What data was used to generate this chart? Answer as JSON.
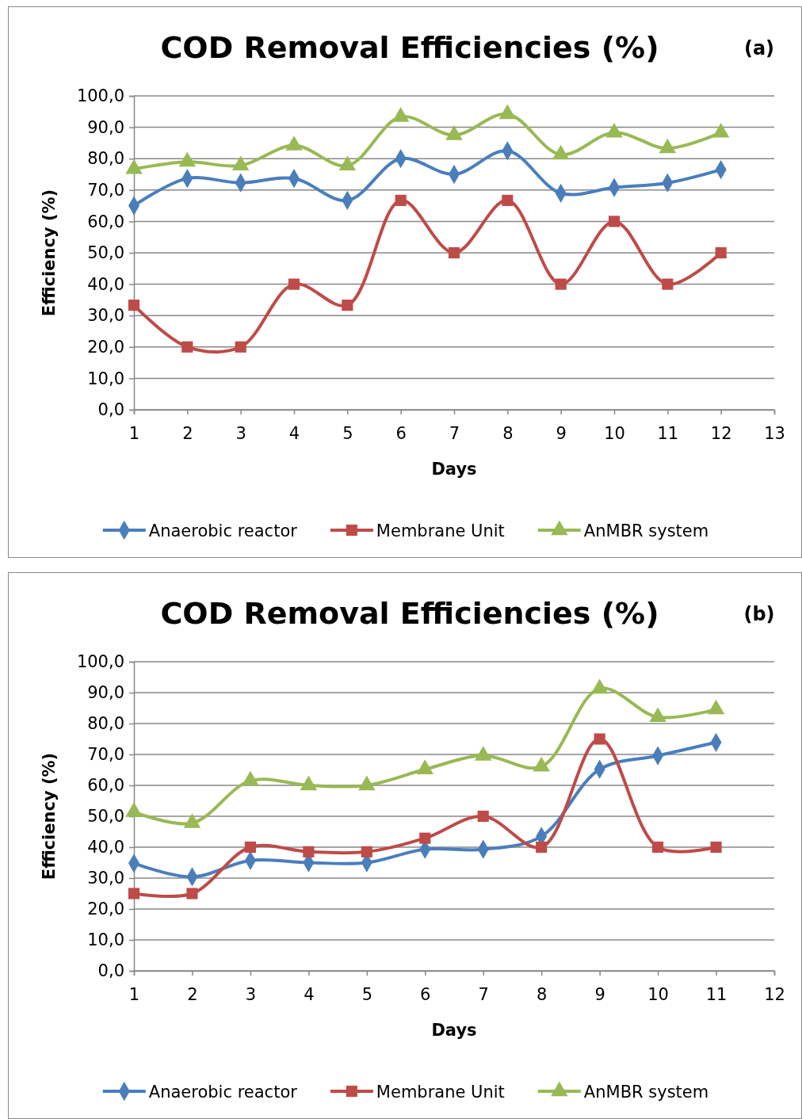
{
  "chart_data": [
    {
      "type": "line",
      "title": "COD Removal Efficiencies (%)",
      "annotations": [
        "(a)"
      ],
      "xlabel": "Days",
      "ylabel": "Efficiency (%)",
      "x": [
        1,
        2,
        3,
        4,
        5,
        6,
        7,
        8,
        9,
        10,
        11,
        12
      ],
      "xlim": [
        1,
        13
      ],
      "xticks": [
        1,
        2,
        3,
        4,
        5,
        6,
        7,
        8,
        9,
        10,
        11,
        12,
        13
      ],
      "ylim": [
        0,
        100
      ],
      "yticks": [
        {
          "value": 0,
          "label": "0,0"
        },
        {
          "value": 10,
          "label": "10,0"
        },
        {
          "value": 20,
          "label": "20,0"
        },
        {
          "value": 30,
          "label": "30,0"
        },
        {
          "value": 40,
          "label": "40,0"
        },
        {
          "value": 50,
          "label": "50,0"
        },
        {
          "value": 60,
          "label": "60,0"
        },
        {
          "value": 70,
          "label": "70,0"
        },
        {
          "value": 80,
          "label": "80,0"
        },
        {
          "value": 90,
          "label": "90,0"
        },
        {
          "value": 100,
          "label": "100,0"
        }
      ],
      "grid": "y",
      "legend": "bottom",
      "line_style": "solid",
      "series": [
        {
          "name": "Anaerobic reactor",
          "color": "#4a7ebb",
          "marker": "diamond",
          "values": [
            65,
            73.7,
            72.3,
            73.7,
            66.7,
            80,
            75,
            82.5,
            69,
            70.8,
            72.3,
            76.5
          ]
        },
        {
          "name": "Membrane Unit",
          "color": "#be4b48",
          "marker": "square",
          "values": [
            33.3,
            20,
            20,
            40,
            33.3,
            66.7,
            50,
            66.7,
            40,
            60,
            40,
            50
          ]
        },
        {
          "name": "AnMBR system",
          "color": "#98b954",
          "marker": "triangle",
          "values": [
            76.7,
            79,
            77.8,
            84.2,
            77.8,
            93.3,
            87.5,
            94.2,
            81.3,
            88.3,
            83.3,
            88.3
          ]
        }
      ]
    },
    {
      "type": "line",
      "title": "COD Removal Efficiencies (%)",
      "annotations": [
        "(b)"
      ],
      "xlabel": "Days",
      "ylabel": "Efficiency (%)",
      "x": [
        1,
        2,
        3,
        4,
        5,
        6,
        7,
        8,
        9,
        10,
        11
      ],
      "xlim": [
        1,
        12
      ],
      "xticks": [
        1,
        2,
        3,
        4,
        5,
        6,
        7,
        8,
        9,
        10,
        11,
        12
      ],
      "ylim": [
        0,
        100
      ],
      "yticks": [
        {
          "value": 0,
          "label": "0,0"
        },
        {
          "value": 10,
          "label": "10,0"
        },
        {
          "value": 20,
          "label": "20,0"
        },
        {
          "value": 30,
          "label": "30,0"
        },
        {
          "value": 40,
          "label": "40,0"
        },
        {
          "value": 50,
          "label": "50,0"
        },
        {
          "value": 60,
          "label": "60,0"
        },
        {
          "value": 70,
          "label": "70,0"
        },
        {
          "value": 80,
          "label": "80,0"
        },
        {
          "value": 90,
          "label": "90,0"
        },
        {
          "value": 100,
          "label": "100,0"
        }
      ],
      "grid": "y",
      "legend": "bottom",
      "line_style": "solid",
      "series": [
        {
          "name": "Anaerobic reactor",
          "color": "#4a7ebb",
          "marker": "diamond",
          "values": [
            34.8,
            30.4,
            35.7,
            35,
            35,
            39.3,
            39.3,
            43.5,
            65.2,
            69.6,
            73.9
          ]
        },
        {
          "name": "Membrane Unit",
          "color": "#be4b48",
          "marker": "square",
          "values": [
            25,
            25,
            40,
            38.5,
            38.5,
            42.9,
            50,
            40,
            75,
            40,
            40
          ]
        },
        {
          "name": "AnMBR system",
          "color": "#98b954",
          "marker": "triangle",
          "values": [
            51.4,
            47.8,
            61.5,
            60,
            60,
            65.2,
            69.6,
            66.1,
            91.3,
            82.1,
            84.6
          ]
        }
      ]
    }
  ]
}
